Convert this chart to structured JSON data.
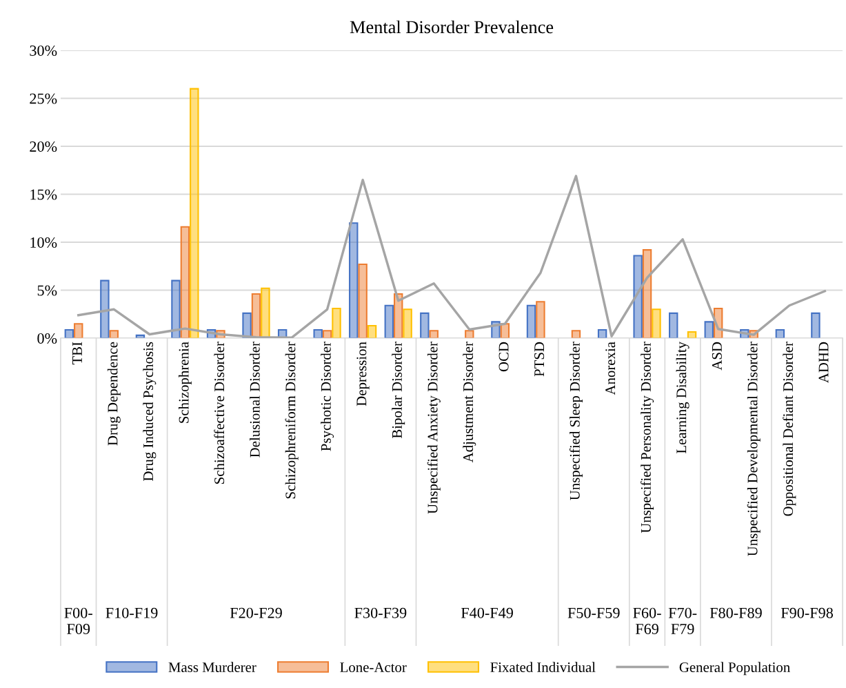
{
  "chart_data": {
    "type": "bar",
    "title": "Mental Disorder Prevalence",
    "categories": [
      "TBI",
      "Drug Dependence",
      "Drug Induced Psychosis",
      "Schizophrenia",
      "Schizoaffective Disorder",
      "Delusional Disorder",
      "Schizophreniform Disorder",
      "Psychotic Disorder",
      "Depression",
      "Bipolar Disorder",
      "Unspecified Anxiety Disorder",
      "Adjustment Disorder",
      "OCD",
      "PTSD",
      "Unspecified Sleep Disorder",
      "Anorexia",
      "Unspecified Personality Disorder",
      "Learning Disability",
      "ASD",
      "Unspecified Developmental Disorder",
      "Oppositional Defiant Disorder",
      "ADHD"
    ],
    "series": [
      {
        "name": "Mass Murderer",
        "color": "#4472c4",
        "values": [
          0.86,
          6.0,
          0.3,
          6.0,
          0.86,
          2.6,
          0.86,
          0.86,
          12.0,
          3.4,
          2.6,
          null,
          1.7,
          3.4,
          null,
          0.86,
          8.6,
          2.6,
          1.7,
          0.86,
          0.86,
          2.6
        ]
      },
      {
        "name": "Lone-Actor",
        "color": "#ed7d31",
        "values": [
          1.5,
          0.77,
          null,
          11.6,
          0.77,
          4.6,
          null,
          0.77,
          7.7,
          4.6,
          0.77,
          0.77,
          1.5,
          3.8,
          0.77,
          null,
          9.2,
          null,
          3.1,
          0.77,
          null,
          null
        ]
      },
      {
        "name": "Fixated Individual",
        "color": "#ffc000",
        "values": [
          null,
          null,
          null,
          26.0,
          null,
          5.2,
          null,
          3.1,
          1.3,
          3.0,
          null,
          null,
          null,
          null,
          null,
          null,
          3.0,
          0.65,
          null,
          null,
          null,
          null
        ]
      },
      {
        "name": "General Population",
        "type": "line",
        "color": "#a5a5a5",
        "values": [
          2.4,
          3.0,
          0.4,
          1.0,
          0.4,
          0.1,
          0.05,
          3.0,
          16.5,
          3.9,
          5.7,
          0.9,
          1.5,
          6.8,
          16.9,
          0.2,
          6.3,
          10.3,
          0.95,
          0.35,
          3.4,
          4.9
        ]
      }
    ],
    "ylim": [
      0,
      30
    ],
    "yticks": [
      {
        "value": 0,
        "label": "0%"
      },
      {
        "value": 5,
        "label": "5%"
      },
      {
        "value": 10,
        "label": "10%"
      },
      {
        "value": 15,
        "label": "15%"
      },
      {
        "value": 20,
        "label": "20%"
      },
      {
        "value": 25,
        "label": "25%"
      },
      {
        "value": 30,
        "label": "30%"
      }
    ],
    "grid": "y",
    "legend": "bottom",
    "annotations": [
      "F00-F09",
      "F10-F19",
      "F20-F29",
      "F30-F39",
      "F40-F49",
      "F50-F59",
      "F60-F69",
      "F70-F79",
      "F80-F89",
      "F90-F98"
    ]
  }
}
